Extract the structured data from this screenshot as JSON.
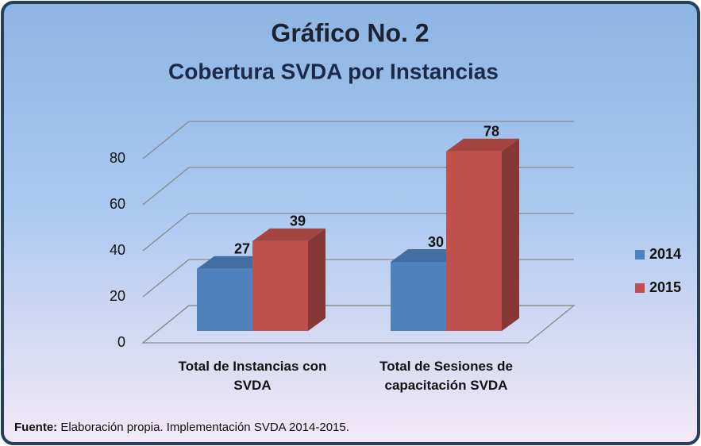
{
  "chart_data": {
    "type": "bar3d",
    "title": "Gráfico No. 2",
    "subtitle": "Cobertura SVDA por Instancias",
    "categories": [
      "Total de Instancias con SVDA",
      "Total de Sesiones de capacitación SVDA"
    ],
    "series": [
      {
        "name": "2014",
        "color": "#4f81bd",
        "values": [
          27,
          30
        ]
      },
      {
        "name": "2015",
        "color": "#c0504d",
        "values": [
          39,
          78
        ]
      }
    ],
    "ylim": [
      0,
      80
    ],
    "yticks": [
      0,
      20,
      40,
      60,
      80
    ],
    "grid": true,
    "legend": "right",
    "source_label": "Fuente:",
    "source": "Elaboración propia. Implementación SVDA 2014-2015."
  }
}
